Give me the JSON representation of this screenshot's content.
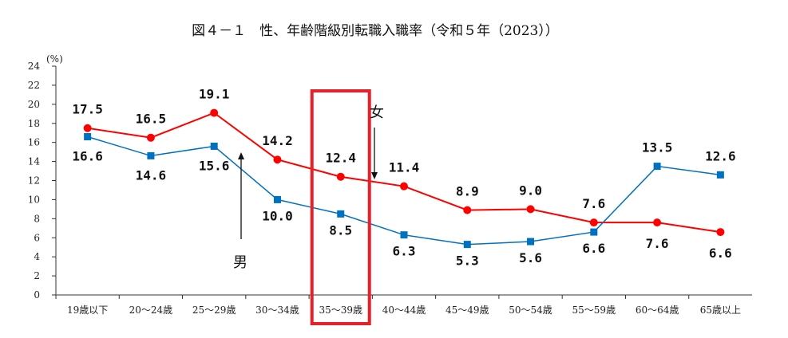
{
  "chart_data": {
    "type": "line",
    "title": "図４－１　性、年齢階級別転職入職率（令和５年（2023））",
    "ylabel": "(%)",
    "xlabel": "",
    "ylim": [
      0,
      24
    ],
    "yticks": [
      0,
      2,
      4,
      6,
      8,
      10,
      12,
      14,
      16,
      18,
      20,
      22,
      24
    ],
    "grid": false,
    "categories": [
      "19歳以下",
      "20～24歳",
      "25～29歳",
      "30～34歳",
      "35～39歳",
      "40～44歳",
      "45～49歳",
      "50～54歳",
      "55～59歳",
      "60～64歳",
      "65歳以上"
    ],
    "series": [
      {
        "name": "女",
        "color": "#ff0000",
        "marker": "circle",
        "values": [
          17.5,
          16.5,
          19.1,
          14.2,
          12.4,
          11.4,
          8.9,
          9.0,
          7.6,
          7.6,
          6.6
        ]
      },
      {
        "name": "男",
        "color": "#0070c0",
        "marker": "square",
        "values": [
          16.6,
          14.6,
          15.6,
          10.0,
          8.5,
          6.3,
          5.3,
          5.6,
          6.6,
          13.5,
          12.6
        ]
      }
    ],
    "highlight": {
      "category": "35～39歳",
      "color": "#e8202a"
    }
  }
}
